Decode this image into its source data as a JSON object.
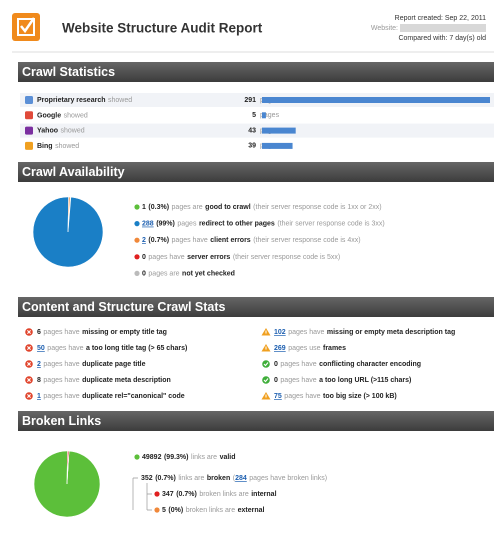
{
  "header": {
    "title": "Website Structure Audit Report",
    "report_created": "Report created: Sep 22, 2011",
    "website": "Website:",
    "compared_with": "Compared with: 7 day(s) old"
  },
  "crawl_statistics": {
    "title": "Crawl Statistics",
    "unit": "pages",
    "bar_color": "#4a86d0",
    "rows": [
      {
        "name": "Proprietary research",
        "verb": "showed",
        "count": 291,
        "color": "#5b8fd6"
      },
      {
        "name": "Google",
        "verb": "showed",
        "count": 5,
        "color": "#e04a3a"
      },
      {
        "name": "Yahoo",
        "verb": "showed",
        "count": 43,
        "color": "#7b2fa0"
      },
      {
        "name": "Bing",
        "verb": "showed",
        "count": 39,
        "color": "#f0a020"
      }
    ]
  },
  "crawl_availability": {
    "title": "Crawl Availability",
    "items": [
      {
        "count": 1,
        "share": "(0.3%)",
        "pre": "pages are",
        "bold": "good to crawl",
        "post": "(their server response code is 1xx or 2xx)",
        "color": "#5cbf3a"
      },
      {
        "count": 288,
        "share": "(99%)",
        "pre": "pages",
        "bold": "redirect to other pages",
        "post": "(their server response code is 3xx)",
        "color": "#1a7fc6",
        "link": true
      },
      {
        "count": 2,
        "share": "(0.7%)",
        "pre": "pages have",
        "bold": "client errors",
        "post": "(their server response code is 4xx)",
        "color": "#f0883a",
        "link": true
      },
      {
        "count": 0,
        "pre": "pages have",
        "bold": "server errors",
        "post": "(their server response code is 5xx)",
        "color": "#e02020"
      },
      {
        "count": 0,
        "pre": "pages are",
        "bold": "not yet checked",
        "color": "#bbbbbb"
      }
    ]
  },
  "content_stats": {
    "title": "Content and Structure Crawl Stats",
    "left": [
      {
        "count": 6,
        "pre": "pages have",
        "bold": "missing or empty title tag",
        "status": "error"
      },
      {
        "count": 50,
        "pre": "pages have",
        "bold": "a too long title tag (> 65 chars)",
        "status": "error",
        "link": true
      },
      {
        "count": 2,
        "pre": "pages have",
        "bold": "duplicate page title",
        "status": "error",
        "link": true
      },
      {
        "count": 8,
        "pre": "pages have",
        "bold": "duplicate meta description",
        "status": "error"
      },
      {
        "count": 1,
        "pre": "pages have",
        "bold": "duplicate rel=\"canonical\" code",
        "status": "error",
        "link": true
      }
    ],
    "right": [
      {
        "count": 102,
        "pre": "pages have",
        "bold": "missing or empty meta description tag",
        "status": "warning",
        "link": true
      },
      {
        "count": 269,
        "pre": "pages use",
        "bold": "frames",
        "status": "warning",
        "link": true
      },
      {
        "count": 0,
        "pre": "pages have",
        "bold": "conflicting character encoding",
        "status": "ok"
      },
      {
        "count": 0,
        "pre": "pages have",
        "bold": "a too long URL (>115 chars)",
        "status": "ok"
      },
      {
        "count": 75,
        "pre": "pages have",
        "bold": "too big size (> 100 kB)",
        "status": "warning",
        "link": true
      }
    ]
  },
  "broken_links": {
    "title": "Broken Links",
    "valid": {
      "count": 49892,
      "share": "(99.3%)",
      "pre": "links are",
      "bold": "valid",
      "color": "#5cbf3a"
    },
    "broken": {
      "count": 352,
      "share": "(0.7%)",
      "pre": "links are",
      "bold": "broken",
      "open": "(",
      "pages": 284,
      "post": "pages have broken links)"
    },
    "internal": {
      "count": 347,
      "share": "(0.7%)",
      "pre": "broken links are",
      "bold": "internal",
      "color": "#e02020"
    },
    "external": {
      "count": 5,
      "share": "(0%)",
      "pre": "broken links are",
      "bold": "external",
      "color": "#f0883a"
    }
  }
}
